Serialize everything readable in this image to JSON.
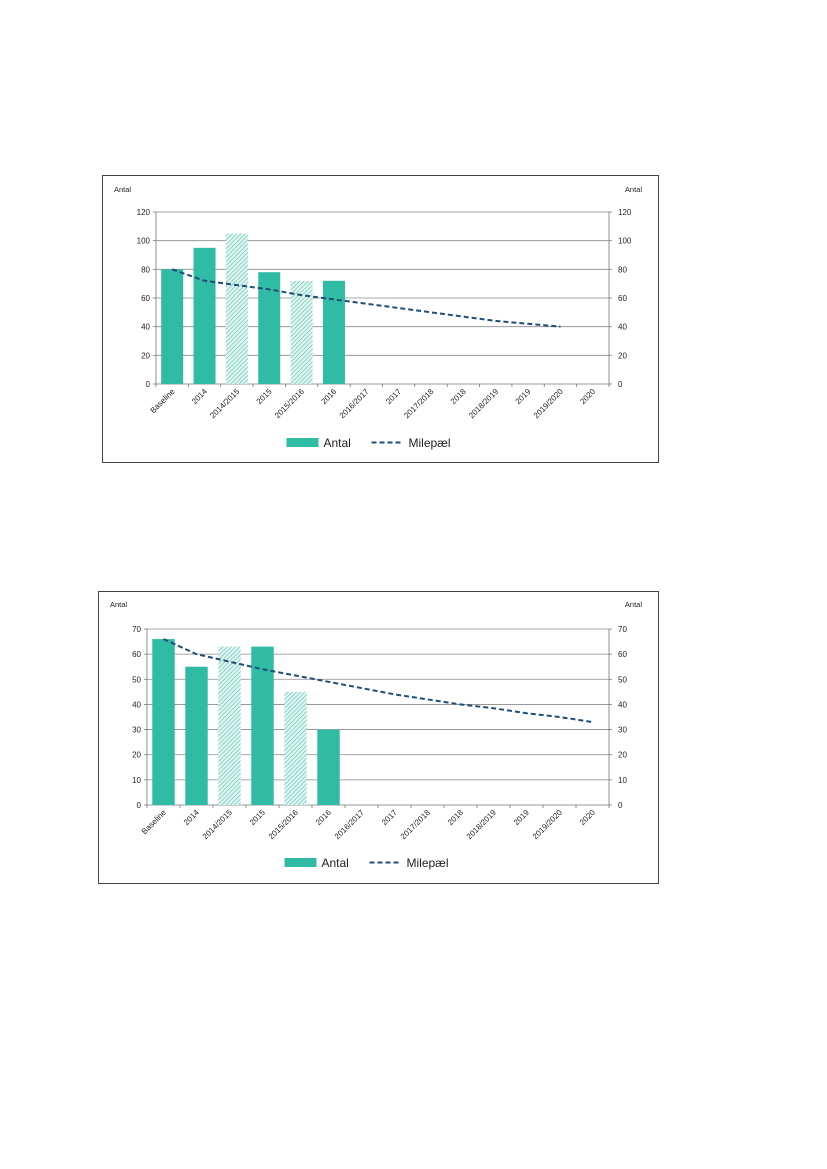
{
  "chart_data": [
    {
      "type": "bar",
      "categories": [
        "Baseline",
        "2014",
        "2014/2015",
        "2015",
        "2015/2016",
        "2016",
        "2016/2017",
        "2017",
        "2017/2018",
        "2018",
        "2018/2019",
        "2019",
        "2019/2020",
        "2020"
      ],
      "series": [
        {
          "name": "Antal",
          "type": "bar",
          "values": [
            80,
            95,
            105,
            78,
            72,
            72,
            null,
            null,
            null,
            null,
            null,
            null,
            null,
            null
          ],
          "hatched": [
            false,
            false,
            true,
            false,
            true,
            false,
            false,
            false,
            false,
            false,
            false,
            false,
            false,
            false
          ],
          "color": "#2fbba4"
        },
        {
          "name": "Milepæl",
          "type": "line",
          "style": "dashed",
          "values": [
            80,
            72,
            69,
            66,
            62,
            59,
            56,
            53,
            50,
            47,
            44,
            42,
            40,
            null
          ],
          "color": "#1f4e79"
        }
      ],
      "ylabel_left": "Antal",
      "ylabel_right": "Antal",
      "ylim": [
        0,
        120
      ],
      "yticks": [
        0,
        20,
        40,
        60,
        80,
        100,
        120
      ],
      "grid": true,
      "legend": "bottom-center"
    },
    {
      "type": "bar",
      "categories": [
        "Baseline",
        "2014",
        "2014/2015",
        "2015",
        "2015/2016",
        "2016",
        "2016/2017",
        "2017",
        "2017/2018",
        "2018",
        "2018/2019",
        "2019",
        "2019/2020",
        "2020"
      ],
      "series": [
        {
          "name": "Antal",
          "type": "bar",
          "values": [
            66,
            55,
            63,
            63,
            45,
            30,
            null,
            null,
            null,
            null,
            null,
            null,
            null,
            null
          ],
          "hatched": [
            false,
            false,
            true,
            false,
            true,
            false,
            false,
            false,
            false,
            false,
            false,
            false,
            false,
            false
          ],
          "color": "#2fbba4"
        },
        {
          "name": "Milepæl",
          "type": "line",
          "style": "dashed",
          "values": [
            66,
            60,
            57,
            54,
            51.5,
            49,
            46.5,
            44,
            42,
            40,
            38.5,
            36.5,
            35,
            33
          ],
          "color": "#1f4e79"
        }
      ],
      "ylabel_left": "Antal",
      "ylabel_right": "Antal",
      "ylim": [
        0,
        70
      ],
      "yticks": [
        0,
        10,
        20,
        30,
        40,
        50,
        60,
        70
      ],
      "grid": true,
      "legend": "bottom-center"
    }
  ]
}
